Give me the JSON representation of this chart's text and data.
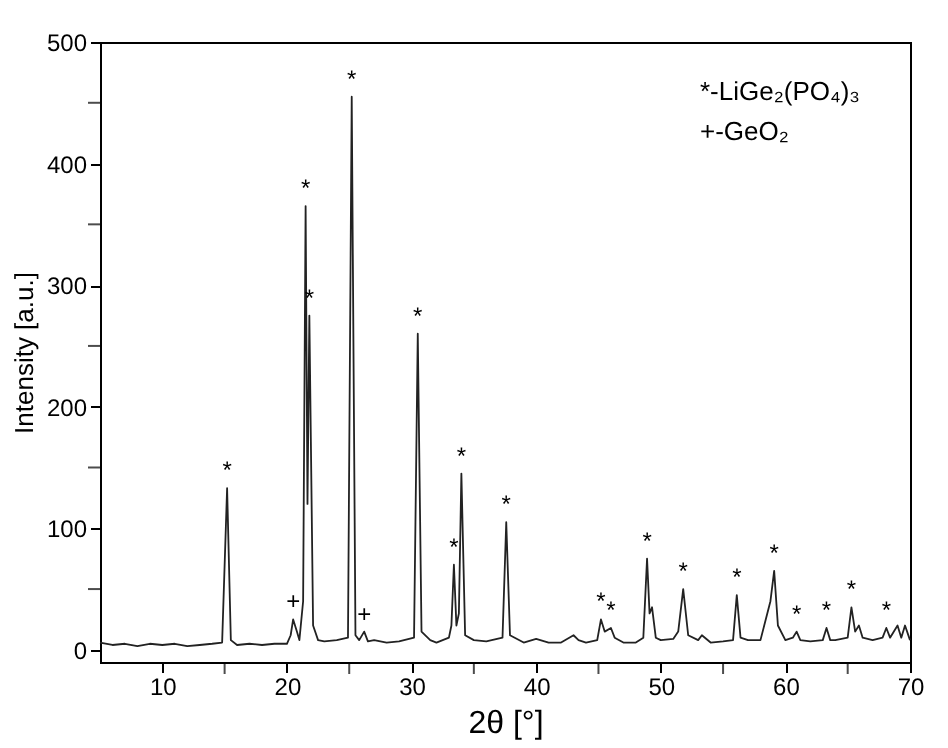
{
  "chart_data": {
    "type": "line",
    "xlabel": "2θ [°]",
    "ylabel": "Intensity [a.u.]",
    "x": [
      5,
      6,
      7,
      8,
      9,
      10,
      11,
      12,
      13,
      14,
      14.8,
      15.2,
      15.5,
      16,
      17,
      18,
      19,
      20,
      20.3,
      20.5,
      20.8,
      21.0,
      21.3,
      21.5,
      21.65,
      21.8,
      22.1,
      22.5,
      23,
      24,
      24.9,
      25.2,
      25.5,
      25.8,
      26.2,
      26.5,
      27,
      28,
      29,
      30.2,
      30.5,
      30.8,
      31.5,
      32,
      33,
      33.2,
      33.4,
      33.6,
      33.8,
      34.0,
      34.3,
      35,
      36,
      37.3,
      37.6,
      37.9,
      39,
      40,
      41,
      42,
      43,
      43.4,
      44,
      44.9,
      45.2,
      45.5,
      46.0,
      46.3,
      47,
      48,
      48.6,
      48.9,
      49.1,
      49.3,
      49.6,
      50,
      51,
      51.4,
      51.8,
      52.2,
      53,
      53.3,
      54,
      55,
      55.8,
      56.1,
      56.4,
      57,
      58,
      58.8,
      59.1,
      59.4,
      60,
      60.6,
      60.9,
      61.2,
      62,
      63,
      63.3,
      63.6,
      64,
      65,
      65.3,
      65.6,
      65.9,
      66.2,
      67,
      67.8,
      68.1,
      68.4,
      69,
      69.3,
      69.6,
      70
    ],
    "series": [
      {
        "color": "#222222",
        "values": [
          6,
          4,
          5,
          3,
          5,
          4,
          5,
          3,
          4,
          5,
          6,
          133,
          8,
          4,
          5,
          4,
          5,
          5,
          12,
          25,
          15,
          8,
          40,
          365,
          120,
          275,
          20,
          8,
          7,
          8,
          10,
          455,
          12,
          8,
          15,
          7,
          8,
          6,
          7,
          10,
          260,
          15,
          8,
          6,
          10,
          20,
          70,
          20,
          30,
          145,
          12,
          8,
          7,
          10,
          105,
          12,
          6,
          9,
          6,
          6,
          12,
          8,
          6,
          8,
          25,
          15,
          18,
          10,
          6,
          6,
          10,
          75,
          30,
          35,
          10,
          8,
          9,
          15,
          50,
          12,
          8,
          12,
          6,
          7,
          8,
          45,
          10,
          8,
          8,
          40,
          65,
          20,
          8,
          10,
          15,
          8,
          7,
          8,
          18,
          8,
          8,
          10,
          35,
          15,
          20,
          10,
          8,
          10,
          18,
          10,
          20,
          10,
          20,
          8
        ]
      }
    ],
    "xlim": [
      5,
      70
    ],
    "ylim": [
      -10,
      500
    ],
    "xticks": [
      10,
      {
        "value": 15,
        "label": null
      },
      20,
      {
        "value": 25,
        "label": null
      },
      30,
      {
        "value": 35,
        "label": null
      },
      40,
      {
        "value": 45,
        "label": null
      },
      50,
      {
        "value": 55,
        "label": null
      },
      60,
      {
        "value": 65,
        "label": null
      },
      70
    ],
    "yticks": [
      0,
      {
        "value": 50,
        "label": null
      },
      100,
      {
        "value": 150,
        "label": null
      },
      200,
      {
        "value": 250,
        "label": null
      },
      300,
      {
        "value": 350,
        "label": null
      },
      400,
      {
        "value": 450,
        "label": null
      },
      500
    ],
    "grid": false,
    "marker": "none",
    "line_style": "solid",
    "annotations": [
      "*-LiGe₂(PO₄)₃",
      "+-GeO₂",
      {
        "text": "*",
        "x": 15.2,
        "y": 133
      },
      {
        "text": "+",
        "x": 20.5,
        "y": 25
      },
      {
        "text": "*",
        "x": 21.5,
        "y": 365
      },
      {
        "text": "*",
        "x": 21.8,
        "y": 275
      },
      {
        "text": "*",
        "x": 25.2,
        "y": 455
      },
      {
        "text": "+",
        "x": 26.2,
        "y": 15
      },
      {
        "text": "*",
        "x": 30.5,
        "y": 260
      },
      {
        "text": "*",
        "x": 33.4,
        "y": 70
      },
      {
        "text": "*",
        "x": 34.0,
        "y": 145
      },
      {
        "text": "*",
        "x": 37.6,
        "y": 105
      },
      {
        "text": "*",
        "x": 45.2,
        "y": 25
      },
      {
        "text": "*",
        "x": 46.0,
        "y": 18
      },
      {
        "text": "*",
        "x": 48.9,
        "y": 75
      },
      {
        "text": "*",
        "x": 51.8,
        "y": 50
      },
      {
        "text": "*",
        "x": 56.1,
        "y": 45
      },
      {
        "text": "*",
        "x": 59.1,
        "y": 65
      },
      {
        "text": "*",
        "x": 60.9,
        "y": 15
      },
      {
        "text": "*",
        "x": 63.3,
        "y": 18
      },
      {
        "text": "*",
        "x": 65.3,
        "y": 35
      },
      {
        "text": "*",
        "x": 68.1,
        "y": 18
      }
    ]
  }
}
